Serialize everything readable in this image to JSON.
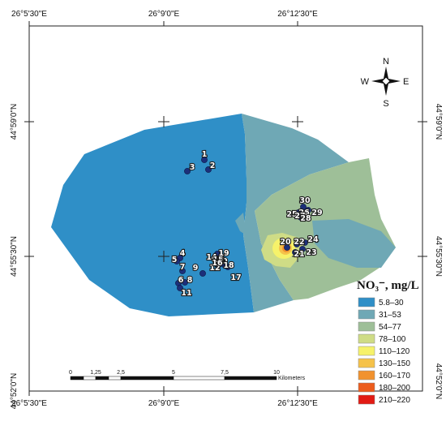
{
  "top_coords": [
    "26°5'30\"E",
    "26°9'0\"E",
    "26°12'30\"E"
  ],
  "bottom_coords": [
    "26°5'30\"E",
    "26°9'0\"E",
    "26°12'30\"E"
  ],
  "left_coords": [
    "44°59'0\"N",
    "44°55'30\"N",
    "44°52'0\"N"
  ],
  "right_coords": [
    "44°59'0\"N",
    "44°55'30\"N",
    "44°52'0\"N"
  ],
  "compass": {
    "n": "N",
    "s": "S",
    "e": "E",
    "w": "W"
  },
  "legend": {
    "title": "NO₃⁻, mg/L",
    "classes": [
      {
        "label": "5.8–30",
        "color": "#2f8fc7"
      },
      {
        "label": "31–53",
        "color": "#6fa8b5"
      },
      {
        "label": "54–77",
        "color": "#9ebf98"
      },
      {
        "label": "78–100",
        "color": "#cfdc86"
      },
      {
        "label": "110–120",
        "color": "#f6f26a"
      },
      {
        "label": "130–150",
        "color": "#f5c24a"
      },
      {
        "label": "160–170",
        "color": "#f1922e"
      },
      {
        "label": "180–200",
        "color": "#ec5c1d"
      },
      {
        "label": "210–220",
        "color": "#e21b14"
      }
    ]
  },
  "scale": {
    "ticks": [
      "0",
      "1,25",
      "2,5",
      "5",
      "7,5",
      "10"
    ],
    "unit": "Kilometers"
  },
  "points": [
    "1",
    "2",
    "3",
    "4",
    "5",
    "6",
    "7",
    "8",
    "9",
    "10",
    "11",
    "12",
    "13",
    "14",
    "15",
    "16",
    "17",
    "18",
    "19",
    "20",
    "21",
    "22",
    "23",
    "24",
    "25",
    "26",
    "27",
    "28",
    "29",
    "30"
  ]
}
